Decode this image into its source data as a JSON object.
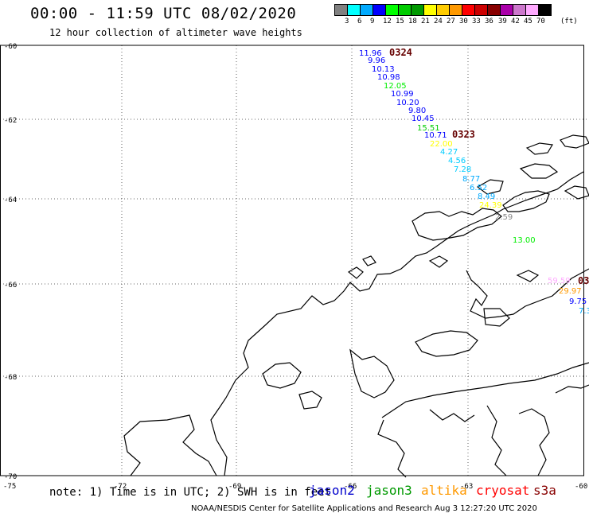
{
  "header": {
    "title": "00:00 - 11:59 UTC 08/02/2020",
    "subtitle": "12 hour collection of altimeter wave heights"
  },
  "legend": {
    "unit_label": "(ft)",
    "colors": [
      "#808080",
      "#00ffff",
      "#00aaff",
      "#0000ff",
      "#00ff00",
      "#00cc00",
      "#009900",
      "#ffff00",
      "#ffcc00",
      "#ff9900",
      "#ff0000",
      "#cc0000",
      "#880000",
      "#aa00aa",
      "#cc77cc",
      "#ffaaff",
      "#000000"
    ],
    "labels": [
      "3",
      "6",
      "9",
      "12",
      "15",
      "18",
      "21",
      "24",
      "27",
      "30",
      "33",
      "36",
      "39",
      "42",
      "45",
      "70"
    ]
  },
  "axes": {
    "lat_labels": [
      "-60",
      "-62",
      "-64",
      "-66",
      "-68",
      "-70"
    ],
    "lon_labels": [
      "-75",
      "-72",
      "-69",
      "-66",
      "-63",
      "-60"
    ]
  },
  "tracks": [
    {
      "time_label": "0324",
      "color": "#660000"
    },
    {
      "time_label": "0323",
      "color": "#660000"
    },
    {
      "time_label": "03",
      "color": "#660000"
    }
  ],
  "observations": [
    {
      "value": "11.96",
      "color": "#0000ff"
    },
    {
      "value": "9.96",
      "color": "#0000ff"
    },
    {
      "value": "10.13",
      "color": "#0000ff"
    },
    {
      "value": "10.98",
      "color": "#0000ff"
    },
    {
      "value": "12.05",
      "color": "#00ee00"
    },
    {
      "value": "10.99",
      "color": "#0000ff"
    },
    {
      "value": "10.20",
      "color": "#0000ff"
    },
    {
      "value": "9.80",
      "color": "#0000ff"
    },
    {
      "value": "10.45",
      "color": "#0000ff"
    },
    {
      "value": "15.51",
      "color": "#00cc00"
    },
    {
      "value": "10.71",
      "color": "#0000ff"
    },
    {
      "value": "22.00",
      "color": "#ffff00"
    },
    {
      "value": "4.27",
      "color": "#00ccff"
    },
    {
      "value": "4.56",
      "color": "#00ccff"
    },
    {
      "value": "7.28",
      "color": "#00ccff"
    },
    {
      "value": "8.77",
      "color": "#00aaff"
    },
    {
      "value": "6.52",
      "color": "#00aaff"
    },
    {
      "value": "8.49",
      "color": "#00aaff"
    },
    {
      "value": "24.39",
      "color": "#ffff00"
    },
    {
      "value": "2.59",
      "color": "#888888"
    },
    {
      "value": "13.00",
      "color": "#00ee00"
    },
    {
      "value": "59.59",
      "color": "#ffaaff"
    },
    {
      "value": "29.97",
      "color": "#ff9900"
    },
    {
      "value": "9.75",
      "color": "#0000ff"
    },
    {
      "value": "7.3",
      "color": "#00aaff"
    }
  ],
  "notes": {
    "note_text": "note: 1) Time is in UTC; 2) SWH is in feet",
    "footer": "NOAA/NESDIS Center for Satellite Applications and Research   Aug  3 12:27:20 UTC 2020"
  },
  "satellites": [
    {
      "name": "jason2",
      "color": "#0000cc"
    },
    {
      "name": "jason3",
      "color": "#009900"
    },
    {
      "name": "altika",
      "color": "#ff9900"
    },
    {
      "name": "cryosat",
      "color": "#ff0000"
    },
    {
      "name": "s3a",
      "color": "#880000"
    }
  ]
}
